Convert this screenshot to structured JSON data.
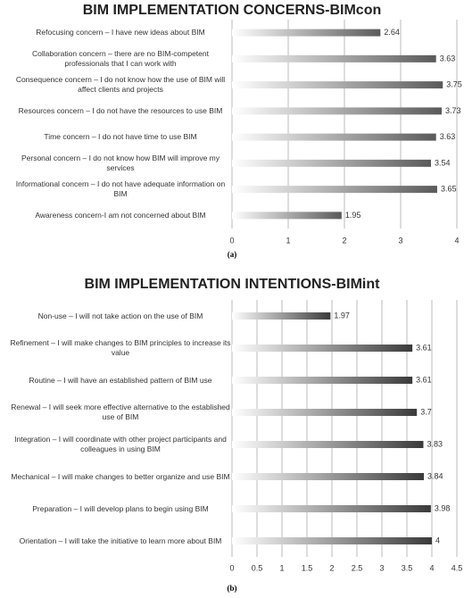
{
  "chart_data": [
    {
      "type": "bar",
      "orientation": "horizontal",
      "title": "BIM IMPLEMENTATION CONCERNS-BIMcon",
      "caption": "(a)",
      "categories": [
        "Refocusing concern – I have new ideas about BIM",
        "Collaboration concern – there are no BIM-competent professionals that I can work with",
        "Consequence concern – I do not know how the use of BIM will affect clients and projects",
        "Resources concern – I do not have the resources to use BIM",
        "Time concern – I do not have time to use BIM",
        "Personal concern – I do not know how BIM will improve my services",
        "Informational concern – I do not have adequate information on BIM",
        "Awareness concern-I am not concerned about BIM"
      ],
      "values": [
        2.64,
        3.63,
        3.75,
        3.73,
        3.63,
        3.54,
        3.65,
        1.95
      ],
      "color": "#5a5a5a",
      "xlim": [
        0,
        4
      ],
      "xticks": [
        0,
        1,
        2,
        3,
        4
      ],
      "grid": true
    },
    {
      "type": "bar",
      "orientation": "horizontal",
      "title": "BIM IMPLEMENTATION INTENTIONS-BIMint",
      "caption": "(b)",
      "categories": [
        "Non-use – I will not take action on the use of BIM",
        "Refinement – I will make changes to BIM principles to increase its value",
        "Routine – I will have an established pattern of BIM use",
        "Renewal – I will seek more effective alternative to the established use of BIM",
        "Integration – I will coordinate with other project participants and colleagues in using BIM",
        "Mechanical – I will make changes to better organize and use BIM",
        "Preparation – I will develop plans to begin using BIM",
        "Orientation – I will take the initiative to learn more about BIM"
      ],
      "values": [
        1.97,
        3.61,
        3.61,
        3.7,
        3.83,
        3.84,
        3.98,
        4
      ],
      "color": "#3a3a3a",
      "xlim": [
        0,
        4.5
      ],
      "xticks": [
        0,
        0.5,
        1,
        1.5,
        2,
        2.5,
        3,
        3.5,
        4,
        4.5
      ],
      "grid": true
    }
  ]
}
